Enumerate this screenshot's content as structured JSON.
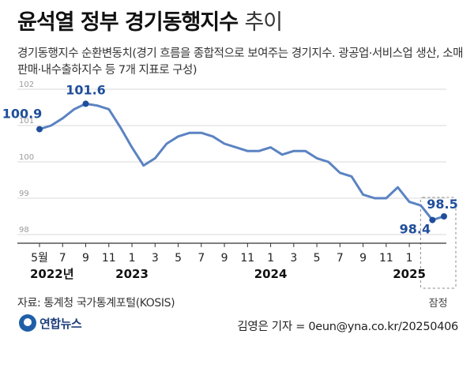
{
  "header": {
    "title_bold": "윤석열 정부 경기동행지수",
    "title_light": "추이",
    "subtitle": "경기동행지수 순환변동치(경기 흐름을 종합적으로 보여주는 경기지수. 광공업·서비스업 생산, 소매판매·내수출하지수 등 7개 지표로 구성)"
  },
  "chart_data": {
    "type": "line",
    "title": "윤석열 정부 경기동행지수 추이",
    "ylim": [
      98,
      102
    ],
    "yticks": [
      "102",
      "101",
      "100",
      "99",
      "98"
    ],
    "series": [
      {
        "name": "경기동행지수 순환변동치",
        "color": "#5b83c2",
        "values": [
          100.9,
          101.0,
          101.2,
          101.45,
          101.6,
          101.55,
          101.45,
          100.95,
          100.4,
          99.9,
          100.1,
          100.5,
          100.7,
          100.8,
          100.8,
          100.7,
          100.5,
          100.4,
          100.3,
          100.3,
          100.4,
          100.2,
          100.3,
          100.3,
          100.1,
          100.0,
          99.7,
          99.6,
          99.1,
          99.0,
          99.0,
          99.3,
          98.9,
          98.8,
          98.4,
          98.5
        ]
      }
    ],
    "month_labels": [
      "5월",
      "7",
      "9",
      "11",
      "1",
      "3",
      "5",
      "7",
      "9",
      "11",
      "1",
      "3",
      "5",
      "7",
      "9",
      "11",
      "1"
    ],
    "year_labels": [
      "2022년",
      "2023",
      "2024",
      "2025"
    ],
    "annotations": [
      {
        "label": "100.9",
        "point": 0
      },
      {
        "label": "101.6",
        "point": 4
      },
      {
        "label": "98.4",
        "point": 34
      },
      {
        "label": "98.5",
        "point": 35
      }
    ],
    "provisional_label": "잠정"
  },
  "footer": {
    "source": "자료: 통계청 국가통계포털(KOSIS)",
    "logo_text": "연합뉴스",
    "credit": "김영은 기자 = 0eun@yna.co.kr/20250406"
  },
  "colors": {
    "line": "#5b83c2",
    "label": "#1f4e9a",
    "grid": "#d9d9d9"
  }
}
